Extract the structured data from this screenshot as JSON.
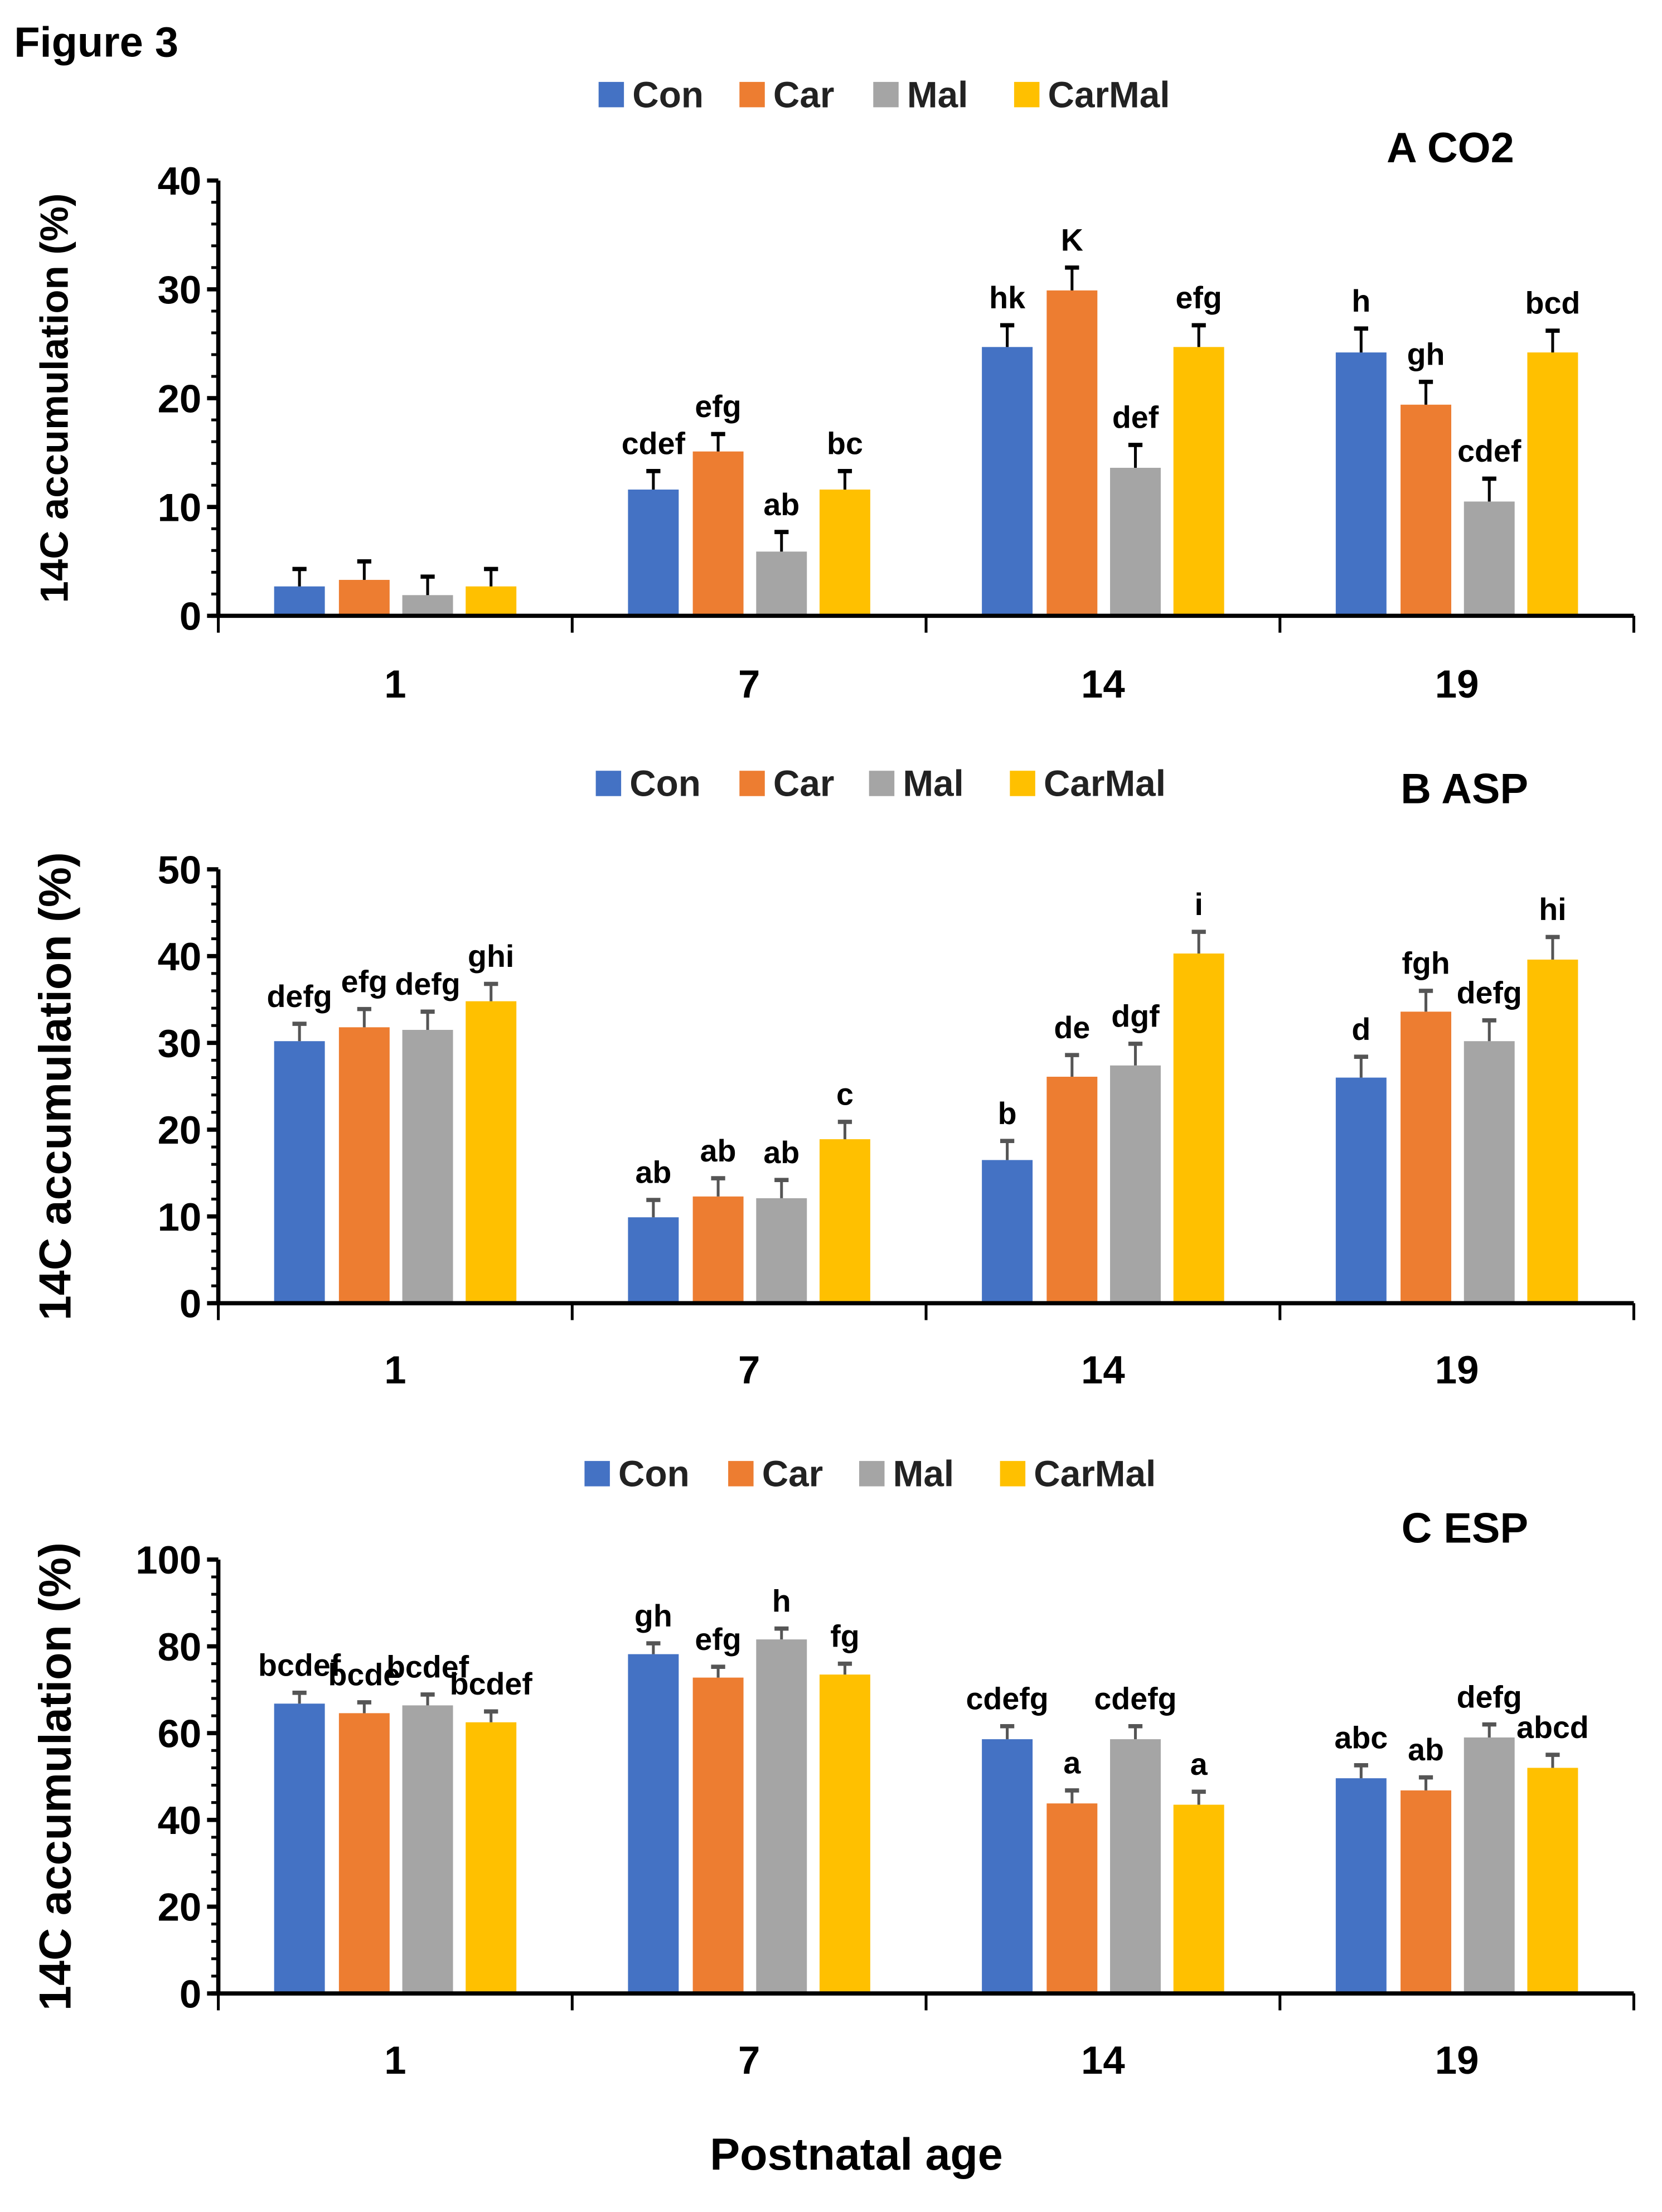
{
  "figure_label": "Figure 3",
  "shared_xlabel": "Postnatal age",
  "colors": {
    "Con": "#4472C4",
    "Car": "#ED7D31",
    "Mal": "#A5A5A5",
    "CarMal": "#FFC000"
  },
  "chart_data": [
    {
      "type": "bar",
      "title": "A CO2",
      "ylabel": "14C accumulation (%)",
      "categories": [
        "1",
        "7",
        "14",
        "19"
      ],
      "ylim": [
        0,
        40
      ],
      "yticks": [
        0,
        10,
        20,
        30,
        40
      ],
      "legend_position": "top",
      "series": [
        {
          "name": "Con",
          "values": [
            2.7,
            11.6,
            24.7,
            24.2
          ],
          "errors": [
            1.6,
            1.7,
            2.0,
            2.2
          ],
          "letters": [
            "",
            "cdef",
            "hk",
            "h"
          ]
        },
        {
          "name": "Car",
          "values": [
            3.3,
            15.1,
            29.9,
            19.4
          ],
          "errors": [
            1.7,
            1.6,
            2.1,
            2.1
          ],
          "letters": [
            "",
            "efg",
            "K",
            "gh"
          ]
        },
        {
          "name": "Mal",
          "values": [
            1.9,
            5.9,
            13.6,
            10.5
          ],
          "errors": [
            1.7,
            1.8,
            2.1,
            2.1
          ],
          "letters": [
            "",
            "ab",
            "def",
            "cdef"
          ]
        },
        {
          "name": "CarMal",
          "values": [
            2.7,
            11.6,
            24.7,
            24.2
          ],
          "errors": [
            1.6,
            1.7,
            2.0,
            2.0
          ],
          "letters": [
            "",
            "bc",
            "efg",
            "bcd"
          ]
        }
      ]
    },
    {
      "type": "bar",
      "title": "B ASP",
      "ylabel": "14C accumulation (%)",
      "categories": [
        "1",
        "7",
        "14",
        "19"
      ],
      "ylim": [
        0,
        50
      ],
      "yticks": [
        0,
        10,
        20,
        30,
        40,
        50
      ],
      "legend_position": "top",
      "series": [
        {
          "name": "Con",
          "values": [
            30.2,
            9.9,
            16.5,
            26.0
          ],
          "errors": [
            2.0,
            2.0,
            2.2,
            2.4
          ],
          "letters": [
            "defg",
            "ab",
            "b",
            "d"
          ]
        },
        {
          "name": "Car",
          "values": [
            31.8,
            12.3,
            26.1,
            33.6
          ],
          "errors": [
            2.1,
            2.1,
            2.5,
            2.4
          ],
          "letters": [
            "efg",
            "ab",
            "de",
            "fgh"
          ]
        },
        {
          "name": "Mal",
          "values": [
            31.5,
            12.1,
            27.4,
            30.2
          ],
          "errors": [
            2.1,
            2.1,
            2.5,
            2.4
          ],
          "letters": [
            "defg",
            "ab",
            "dgf",
            "defg"
          ]
        },
        {
          "name": "CarMal",
          "values": [
            34.8,
            18.9,
            40.3,
            39.6
          ],
          "errors": [
            2.0,
            2.0,
            2.5,
            2.6
          ],
          "letters": [
            "ghi",
            "c",
            "i",
            "hi"
          ]
        }
      ]
    },
    {
      "type": "bar",
      "title": "C ESP",
      "ylabel": "14C accumulation (%)",
      "categories": [
        "1",
        "7",
        "14",
        "19"
      ],
      "ylim": [
        0,
        100
      ],
      "yticks": [
        0,
        20,
        40,
        60,
        80,
        100
      ],
      "legend_position": "top",
      "series": [
        {
          "name": "Con",
          "values": [
            66.8,
            78.2,
            58.6,
            49.6
          ],
          "errors": [
            2.5,
            2.5,
            3.0,
            3.0
          ],
          "letters": [
            "bcdef",
            "gh",
            "cdefg",
            "abc"
          ]
        },
        {
          "name": "Car",
          "values": [
            64.6,
            72.8,
            43.8,
            46.8
          ],
          "errors": [
            2.5,
            2.5,
            3.0,
            3.0
          ],
          "letters": [
            "bcde",
            "efg",
            "a",
            "ab"
          ]
        },
        {
          "name": "Mal",
          "values": [
            66.4,
            81.6,
            58.6,
            59.0
          ],
          "errors": [
            2.5,
            2.5,
            3.0,
            3.0
          ],
          "letters": [
            "bcdef",
            "h",
            "cdefg",
            "defg"
          ]
        },
        {
          "name": "CarMal",
          "values": [
            62.5,
            73.5,
            43.5,
            52.0
          ],
          "errors": [
            2.5,
            2.5,
            3.0,
            3.0
          ],
          "letters": [
            "bcdef",
            "fg",
            "a",
            "abcd"
          ]
        }
      ]
    }
  ]
}
